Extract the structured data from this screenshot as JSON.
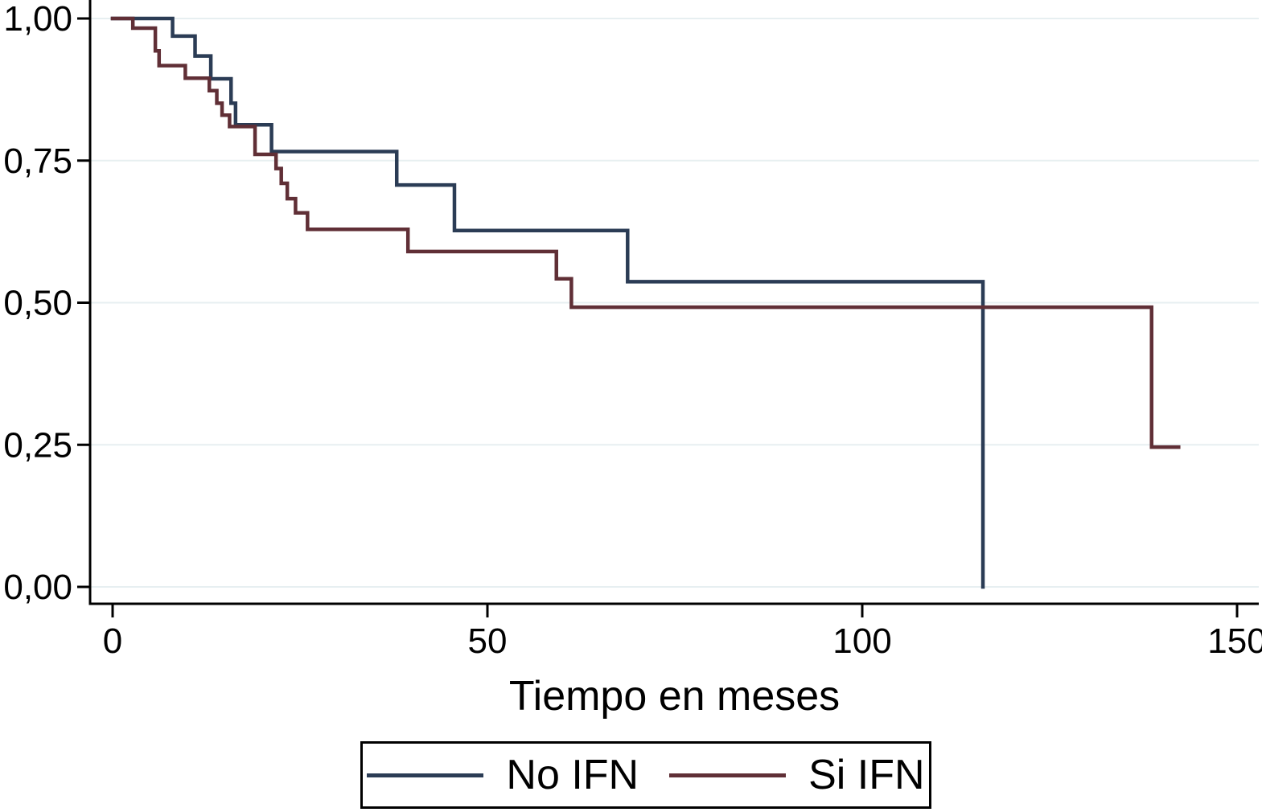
{
  "chart_data": {
    "type": "line",
    "subtype": "kaplan-meier-step-survival",
    "title": "",
    "xlabel": "Tiempo en meses",
    "ylabel": "",
    "xlim": [
      0,
      150
    ],
    "ylim": [
      0.0,
      1.0
    ],
    "grid": "horizontal-only",
    "grid_color": "#e7eff1",
    "axis_color": "#000000",
    "background_color": "#ffffff",
    "decimal_separator": ",",
    "x_ticks": {
      "values": [
        0,
        50,
        100,
        150
      ],
      "labels": [
        "0",
        "50",
        "100",
        "150"
      ]
    },
    "y_ticks": {
      "values": [
        1.0,
        0.75,
        0.5,
        0.25,
        0.0
      ],
      "labels": [
        "1,00",
        "0,75",
        "0,50",
        "0,25",
        "0,00"
      ]
    },
    "legend": {
      "position": "bottom-center",
      "border": "black-box"
    },
    "series": [
      {
        "name": "No IFN",
        "color": "#2b3c55",
        "start": {
          "t": 0,
          "s": 1.0
        },
        "steps": [
          [
            8.0,
            0.969
          ],
          [
            11.0,
            0.934
          ],
          [
            13.1,
            0.894
          ],
          [
            15.8,
            0.851
          ],
          [
            16.4,
            0.813
          ],
          [
            21.2,
            0.766
          ],
          [
            37.9,
            0.707
          ],
          [
            45.6,
            0.627
          ],
          [
            68.7,
            0.537
          ],
          [
            116.1,
            0.0
          ]
        ],
        "end_t": 116.1
      },
      {
        "name": "Si IFN",
        "color": "#602f36",
        "start": {
          "t": 0,
          "s": 1.0
        },
        "steps": [
          [
            2.7,
            0.983
          ],
          [
            5.7,
            0.943
          ],
          [
            6.2,
            0.917
          ],
          [
            9.7,
            0.895
          ],
          [
            12.9,
            0.873
          ],
          [
            13.9,
            0.851
          ],
          [
            14.6,
            0.83
          ],
          [
            15.6,
            0.81
          ],
          [
            19.0,
            0.761
          ],
          [
            21.8,
            0.736
          ],
          [
            22.5,
            0.71
          ],
          [
            23.3,
            0.683
          ],
          [
            24.4,
            0.658
          ],
          [
            26.0,
            0.629
          ],
          [
            39.4,
            0.59
          ],
          [
            59.2,
            0.542
          ],
          [
            61.2,
            0.492
          ],
          [
            138.6,
            0.246
          ]
        ],
        "end_t": 142.2
      }
    ]
  }
}
